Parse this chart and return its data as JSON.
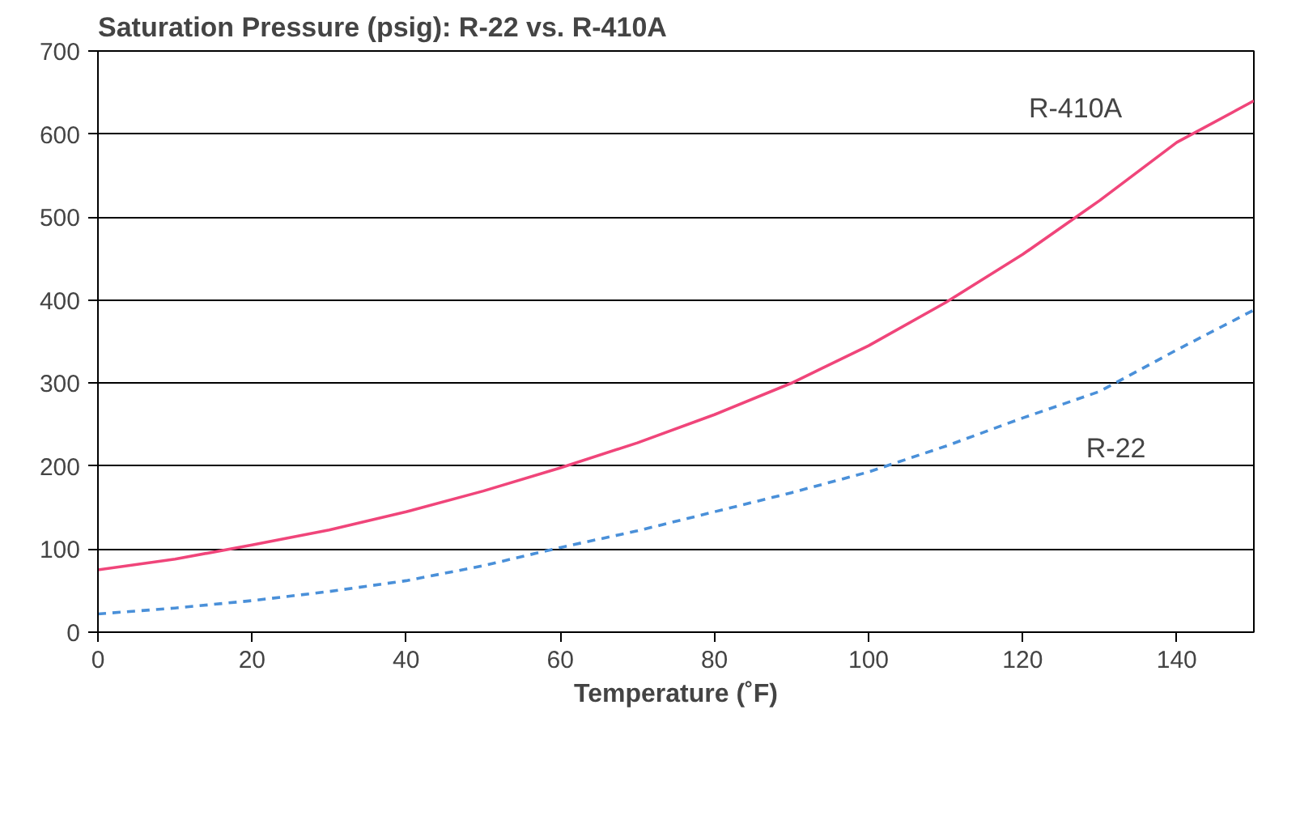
{
  "chart_data": {
    "type": "line",
    "title": "Saturation Pressure (psig): R-22 vs. R-410A",
    "xlabel": "Temperature (˚F)",
    "xlim": [
      0,
      150
    ],
    "xticks": [
      0,
      20,
      40,
      60,
      80,
      100,
      120,
      140
    ],
    "ylim": [
      0,
      700
    ],
    "yticks": [
      0,
      100,
      200,
      300,
      400,
      500,
      600,
      700
    ],
    "grid": "y",
    "series": [
      {
        "name": "R-410A",
        "color": "#f0457a",
        "line_style": "solid",
        "x": [
          0,
          10,
          20,
          30,
          40,
          50,
          60,
          70,
          80,
          90,
          100,
          110,
          120,
          130,
          140,
          150
        ],
        "values": [
          75,
          88,
          105,
          123,
          145,
          170,
          198,
          228,
          262,
          300,
          345,
          397,
          455,
          520,
          590,
          640
        ]
      },
      {
        "name": "R-22",
        "color": "#4a90d9",
        "line_style": "dashed",
        "x": [
          0,
          10,
          20,
          30,
          40,
          50,
          60,
          70,
          80,
          90,
          100,
          110,
          120,
          130,
          140,
          150
        ],
        "values": [
          22,
          29,
          38,
          49,
          62,
          80,
          102,
          122,
          145,
          168,
          193,
          224,
          258,
          290,
          340,
          388
        ]
      }
    ]
  }
}
